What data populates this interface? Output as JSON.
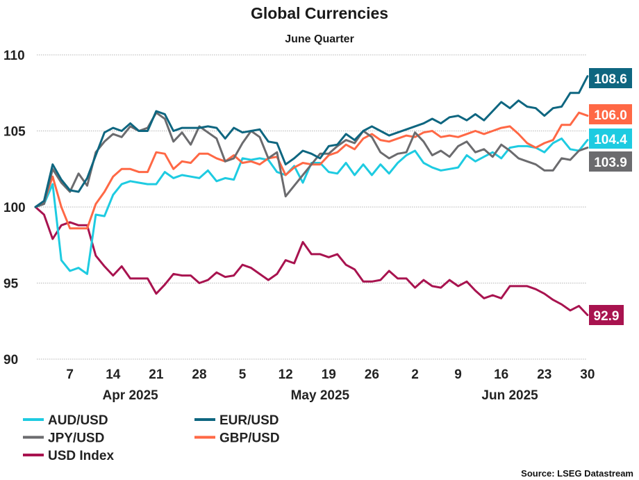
{
  "chart_data": {
    "type": "line",
    "title": "Global Currencies",
    "subtitle": "June Quarter",
    "xlabel": "",
    "ylabel": "",
    "ylim": [
      90,
      110
    ],
    "yticks": [
      90,
      95,
      100,
      105,
      110
    ],
    "grid": true,
    "legend_position": "bottom",
    "source": "Source: LSEG Datastream",
    "x_tick_labels": [
      "7",
      "14",
      "21",
      "28",
      "5",
      "12",
      "19",
      "26",
      "2",
      "9",
      "16",
      "23",
      "30"
    ],
    "x_tick_index": [
      4,
      9,
      14,
      19,
      24,
      29,
      34,
      39,
      44,
      49,
      54,
      59,
      64
    ],
    "month_labels": [
      {
        "label": "Apr 2025",
        "index": 11
      },
      {
        "label": "May 2025",
        "index": 33
      },
      {
        "label": "Jun 2025",
        "index": 55
      }
    ],
    "series": [
      {
        "name": "AUD/USD",
        "color": "#1ecbe1",
        "end_label": "104.4",
        "values": [
          100.0,
          100.2,
          101.5,
          96.5,
          95.8,
          96.0,
          95.6,
          99.5,
          99.4,
          100.8,
          101.5,
          101.7,
          101.6,
          101.5,
          101.5,
          102.3,
          101.9,
          102.1,
          102.0,
          101.9,
          102.4,
          101.7,
          101.9,
          101.8,
          103.2,
          103.1,
          103.2,
          103.1,
          102.3,
          102.1,
          102.7,
          101.6,
          102.9,
          102.9,
          102.3,
          102.2,
          102.9,
          102.1,
          102.8,
          102.1,
          102.8,
          102.2,
          102.9,
          103.4,
          103.7,
          102.9,
          102.6,
          102.4,
          102.5,
          102.6,
          103.4,
          103.0,
          103.3,
          103.6,
          103.2,
          103.9,
          104.0,
          104.0,
          103.9,
          103.6,
          104.2,
          104.5,
          103.8,
          103.7,
          104.4
        ]
      },
      {
        "name": "EUR/USD",
        "color": "#0e6680",
        "end_label": "108.6",
        "values": [
          100.0,
          100.4,
          102.8,
          101.8,
          101.1,
          101.0,
          101.9,
          103.4,
          104.9,
          105.2,
          105.0,
          105.5,
          105.0,
          105.0,
          106.3,
          106.1,
          105.0,
          105.2,
          105.2,
          105.2,
          105.3,
          105.2,
          104.5,
          105.2,
          104.9,
          105.0,
          105.1,
          104.3,
          104.2,
          102.8,
          103.2,
          103.7,
          103.5,
          103.2,
          104.0,
          104.1,
          104.8,
          104.4,
          105.0,
          105.3,
          105.0,
          104.7,
          104.9,
          105.1,
          105.3,
          105.5,
          105.8,
          105.5,
          105.9,
          106.0,
          105.7,
          106.1,
          105.7,
          106.3,
          106.9,
          106.5,
          107.0,
          106.6,
          106.5,
          106.0,
          106.5,
          106.6,
          107.5,
          107.5,
          108.6
        ]
      },
      {
        "name": "JPY/USD",
        "color": "#6b6b6e",
        "end_label": "103.9",
        "values": [
          100.0,
          100.2,
          102.5,
          101.6,
          101.0,
          102.2,
          101.4,
          103.6,
          104.3,
          104.8,
          104.6,
          105.3,
          105.0,
          105.2,
          106.2,
          105.8,
          104.3,
          104.9,
          104.1,
          105.3,
          104.9,
          104.5,
          103.0,
          103.2,
          104.2,
          105.0,
          104.6,
          103.2,
          103.6,
          100.7,
          101.4,
          102.1,
          102.8,
          103.5,
          103.5,
          104.0,
          104.4,
          104.2,
          105.0,
          104.6,
          103.6,
          103.2,
          103.5,
          103.6,
          104.9,
          104.3,
          103.4,
          103.7,
          103.3,
          104.0,
          104.3,
          103.6,
          103.8,
          103.3,
          104.1,
          103.7,
          103.2,
          103.0,
          102.8,
          102.4,
          102.4,
          103.2,
          103.1,
          103.7,
          103.9
        ]
      },
      {
        "name": "GBP/USD",
        "color": "#ff6845",
        "end_label": "106.0",
        "values": [
          100.0,
          100.3,
          102.0,
          100.0,
          98.6,
          98.6,
          98.6,
          100.2,
          101.0,
          102.0,
          102.5,
          102.5,
          102.3,
          102.3,
          103.6,
          103.5,
          102.5,
          103.0,
          102.9,
          103.5,
          103.5,
          103.2,
          103.0,
          103.4,
          102.9,
          103.0,
          102.8,
          103.2,
          103.3,
          102.1,
          102.6,
          102.9,
          102.8,
          102.8,
          103.4,
          103.6,
          104.1,
          103.8,
          104.5,
          104.8,
          104.4,
          104.3,
          104.5,
          104.7,
          104.6,
          104.9,
          105.0,
          104.6,
          104.7,
          104.6,
          104.8,
          105.0,
          104.8,
          105.0,
          105.2,
          105.3,
          104.8,
          104.2,
          103.9,
          104.2,
          104.4,
          105.4,
          105.4,
          106.2,
          106.0
        ]
      },
      {
        "name": "USD Index",
        "color": "#a8134f",
        "end_label": "92.9",
        "values": [
          100.0,
          99.5,
          97.9,
          98.8,
          99.0,
          98.8,
          98.8,
          96.8,
          96.1,
          95.5,
          96.1,
          95.3,
          95.3,
          95.3,
          94.3,
          94.9,
          95.6,
          95.5,
          95.5,
          95.0,
          95.2,
          95.7,
          95.4,
          95.5,
          96.2,
          96.0,
          95.6,
          95.2,
          95.6,
          96.5,
          96.3,
          97.7,
          96.9,
          96.9,
          96.7,
          96.9,
          96.2,
          95.9,
          95.1,
          95.1,
          95.2,
          95.8,
          95.3,
          95.3,
          94.7,
          95.2,
          94.8,
          94.7,
          95.2,
          94.8,
          95.1,
          94.5,
          94.0,
          94.2,
          94.0,
          94.8,
          94.8,
          94.8,
          94.6,
          94.3,
          93.9,
          93.6,
          93.2,
          93.5,
          92.9
        ]
      }
    ],
    "legend": [
      {
        "label": "AUD/USD",
        "color": "#1ecbe1"
      },
      {
        "label": "EUR/USD",
        "color": "#0e6680"
      },
      {
        "label": "JPY/USD",
        "color": "#6b6b6e"
      },
      {
        "label": "GBP/USD",
        "color": "#ff6845"
      },
      {
        "label": "USD Index",
        "color": "#a8134f"
      }
    ]
  }
}
